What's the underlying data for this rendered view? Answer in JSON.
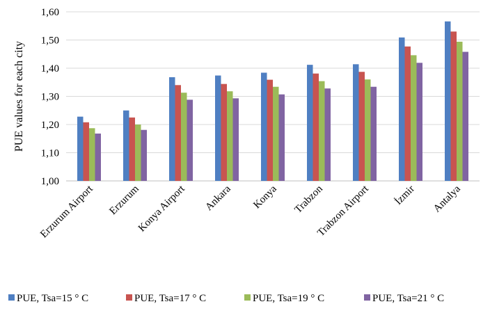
{
  "chart_data": {
    "type": "bar",
    "ylabel": "PUE  values for each city",
    "xlabel": "",
    "ylim": [
      1.0,
      1.6
    ],
    "yticks": [
      "1,00",
      "1,10",
      "1,20",
      "1,30",
      "1,40",
      "1,50",
      "1,60"
    ],
    "grid": true,
    "legend_position": "bottom",
    "categories": [
      "Erzurum Airport",
      "Erzurum",
      "Konya Airport",
      "Ankara",
      "Konya",
      "Trabzon",
      "Trabzon Airport",
      "İzmir",
      "Antalya"
    ],
    "series": [
      {
        "name": "PUE, Tsa=15 ° C",
        "color": "#4f7fc2",
        "values": [
          1.228,
          1.25,
          1.368,
          1.374,
          1.384,
          1.412,
          1.414,
          1.509,
          1.566
        ]
      },
      {
        "name": "PUE, Tsa=17 ° C",
        "color": "#c85450",
        "values": [
          1.208,
          1.225,
          1.34,
          1.344,
          1.359,
          1.381,
          1.387,
          1.477,
          1.53
        ]
      },
      {
        "name": "PUE, Tsa=19 ° C",
        "color": "#9bbb59",
        "values": [
          1.187,
          1.2,
          1.313,
          1.318,
          1.334,
          1.354,
          1.36,
          1.446,
          1.494
        ]
      },
      {
        "name": "PUE, Tsa=21 ° C",
        "color": "#8064a2",
        "values": [
          1.168,
          1.181,
          1.288,
          1.293,
          1.307,
          1.328,
          1.334,
          1.419,
          1.458
        ]
      }
    ]
  }
}
